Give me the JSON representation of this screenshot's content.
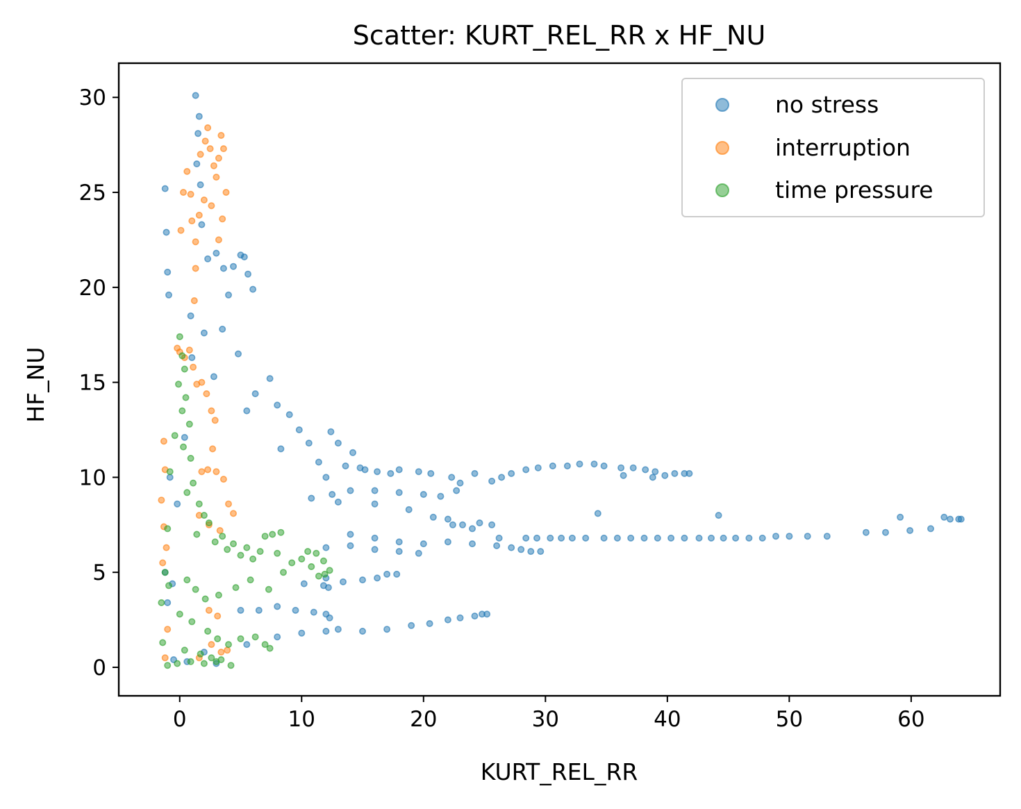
{
  "chart_data": {
    "type": "scatter",
    "title": "Scatter: KURT_REL_RR x HF_NU",
    "xlabel": "KURT_REL_RR",
    "ylabel": "HF_NU",
    "xlim": [
      -5,
      67.3
    ],
    "ylim": [
      -1.5,
      31.8
    ],
    "x_ticks": [
      0,
      10,
      20,
      30,
      40,
      50,
      60
    ],
    "y_ticks": [
      0,
      5,
      10,
      15,
      20,
      25,
      30
    ],
    "legend_position": "top-right",
    "grid": false,
    "series": [
      {
        "name": "no stress",
        "color": "#1f77b4",
        "points": [
          [
            -1.2,
            5.0
          ],
          [
            -1.0,
            3.4
          ],
          [
            -0.6,
            4.4
          ],
          [
            -0.2,
            8.6
          ],
          [
            0.4,
            12.1
          ],
          [
            -0.8,
            10.0
          ],
          [
            -1.0,
            20.8
          ],
          [
            -1.2,
            25.2
          ],
          [
            -1.1,
            22.9
          ],
          [
            -0.9,
            19.6
          ],
          [
            1.3,
            30.1
          ],
          [
            1.6,
            29.0
          ],
          [
            1.5,
            28.1
          ],
          [
            1.4,
            26.5
          ],
          [
            1.7,
            25.4
          ],
          [
            1.8,
            23.3
          ],
          [
            0.9,
            18.5
          ],
          [
            1.0,
            16.3
          ],
          [
            2.0,
            17.6
          ],
          [
            2.3,
            21.5
          ],
          [
            3.0,
            21.8
          ],
          [
            3.6,
            21.0
          ],
          [
            4.0,
            19.6
          ],
          [
            4.4,
            21.1
          ],
          [
            5.0,
            21.7
          ],
          [
            5.3,
            21.6
          ],
          [
            5.6,
            20.7
          ],
          [
            6.0,
            19.9
          ],
          [
            3.5,
            17.8
          ],
          [
            4.8,
            16.5
          ],
          [
            2.8,
            15.3
          ],
          [
            5.5,
            13.5
          ],
          [
            6.2,
            14.4
          ],
          [
            7.4,
            15.2
          ],
          [
            8.0,
            13.8
          ],
          [
            8.3,
            11.5
          ],
          [
            9.0,
            13.3
          ],
          [
            9.8,
            12.5
          ],
          [
            10.6,
            11.8
          ],
          [
            11.4,
            10.8
          ],
          [
            12.0,
            10.0
          ],
          [
            12.4,
            12.4
          ],
          [
            13.0,
            11.8
          ],
          [
            13.6,
            10.6
          ],
          [
            14.2,
            11.3
          ],
          [
            14.8,
            10.5
          ],
          [
            15.2,
            10.4
          ],
          [
            16.2,
            10.3
          ],
          [
            17.3,
            10.2
          ],
          [
            18.0,
            10.4
          ],
          [
            19.6,
            10.3
          ],
          [
            20.6,
            10.2
          ],
          [
            22.3,
            10.0
          ],
          [
            23.0,
            9.7
          ],
          [
            24.2,
            10.2
          ],
          [
            25.6,
            9.8
          ],
          [
            26.4,
            10.0
          ],
          [
            27.2,
            10.2
          ],
          [
            28.4,
            10.4
          ],
          [
            29.4,
            10.5
          ],
          [
            30.6,
            10.6
          ],
          [
            31.8,
            10.6
          ],
          [
            32.8,
            10.7
          ],
          [
            34.0,
            10.7
          ],
          [
            34.8,
            10.6
          ],
          [
            36.2,
            10.5
          ],
          [
            37.2,
            10.5
          ],
          [
            38.2,
            10.4
          ],
          [
            39.0,
            10.3
          ],
          [
            39.8,
            10.1
          ],
          [
            40.6,
            10.2
          ],
          [
            41.4,
            10.2
          ],
          [
            41.8,
            10.2
          ],
          [
            36.4,
            10.1
          ],
          [
            38.8,
            10.0
          ],
          [
            12.5,
            9.1
          ],
          [
            14.0,
            9.3
          ],
          [
            16.0,
            9.3
          ],
          [
            18.0,
            9.2
          ],
          [
            20.0,
            9.1
          ],
          [
            21.4,
            9.0
          ],
          [
            22.7,
            9.3
          ],
          [
            10.8,
            8.9
          ],
          [
            13.0,
            8.7
          ],
          [
            16.0,
            8.6
          ],
          [
            18.8,
            8.3
          ],
          [
            20.8,
            7.9
          ],
          [
            22.0,
            7.8
          ],
          [
            23.2,
            7.5
          ],
          [
            24.6,
            7.6
          ],
          [
            25.6,
            7.5
          ],
          [
            26.2,
            6.8
          ],
          [
            24.0,
            7.3
          ],
          [
            22.4,
            7.5
          ],
          [
            28.4,
            6.8
          ],
          [
            29.3,
            6.8
          ],
          [
            30.4,
            6.8
          ],
          [
            31.3,
            6.8
          ],
          [
            32.2,
            6.8
          ],
          [
            33.3,
            6.8
          ],
          [
            34.8,
            6.8
          ],
          [
            35.9,
            6.8
          ],
          [
            37.0,
            6.8
          ],
          [
            38.1,
            6.8
          ],
          [
            39.2,
            6.8
          ],
          [
            40.3,
            6.8
          ],
          [
            41.4,
            6.8
          ],
          [
            42.6,
            6.8
          ],
          [
            43.6,
            6.8
          ],
          [
            44.6,
            6.8
          ],
          [
            45.6,
            6.8
          ],
          [
            46.7,
            6.8
          ],
          [
            47.8,
            6.8
          ],
          [
            48.9,
            6.9
          ],
          [
            50.0,
            6.9
          ],
          [
            51.5,
            6.9
          ],
          [
            53.1,
            6.9
          ],
          [
            56.3,
            7.1
          ],
          [
            57.9,
            7.1
          ],
          [
            59.1,
            7.9
          ],
          [
            59.9,
            7.2
          ],
          [
            61.6,
            7.3
          ],
          [
            62.7,
            7.9
          ],
          [
            63.2,
            7.8
          ],
          [
            63.9,
            7.8
          ],
          [
            64.1,
            7.8
          ],
          [
            34.3,
            8.1
          ],
          [
            44.2,
            8.0
          ],
          [
            14.0,
            7.0
          ],
          [
            16.0,
            6.8
          ],
          [
            18.0,
            6.6
          ],
          [
            20.0,
            6.5
          ],
          [
            22.0,
            6.6
          ],
          [
            24.0,
            6.5
          ],
          [
            26.0,
            6.4
          ],
          [
            27.2,
            6.3
          ],
          [
            28.0,
            6.2
          ],
          [
            28.8,
            6.1
          ],
          [
            29.6,
            6.1
          ],
          [
            12.0,
            6.3
          ],
          [
            14.0,
            6.4
          ],
          [
            16.0,
            6.2
          ],
          [
            18.0,
            6.1
          ],
          [
            19.6,
            6.0
          ],
          [
            12.0,
            4.7
          ],
          [
            13.4,
            4.5
          ],
          [
            15.0,
            4.6
          ],
          [
            16.2,
            4.7
          ],
          [
            17.0,
            4.9
          ],
          [
            17.8,
            4.9
          ],
          [
            10.2,
            4.4
          ],
          [
            11.8,
            4.3
          ],
          [
            12.2,
            4.2
          ],
          [
            5.0,
            3.0
          ],
          [
            6.5,
            3.0
          ],
          [
            8.0,
            3.2
          ],
          [
            9.5,
            3.0
          ],
          [
            11.0,
            2.9
          ],
          [
            12.0,
            2.8
          ],
          [
            12.3,
            2.6
          ],
          [
            13.0,
            2.0
          ],
          [
            15.0,
            1.9
          ],
          [
            17.0,
            2.0
          ],
          [
            19.0,
            2.2
          ],
          [
            20.5,
            2.3
          ],
          [
            22.0,
            2.5
          ],
          [
            23.0,
            2.6
          ],
          [
            24.2,
            2.7
          ],
          [
            24.8,
            2.8
          ],
          [
            25.2,
            2.8
          ],
          [
            5.5,
            1.2
          ],
          [
            8.0,
            1.6
          ],
          [
            10.0,
            1.8
          ],
          [
            12.0,
            1.9
          ],
          [
            3.0,
            0.2
          ],
          [
            2.0,
            0.8
          ],
          [
            -0.5,
            0.4
          ],
          [
            0.6,
            0.3
          ]
        ]
      },
      {
        "name": "interruption",
        "color": "#ff7f0e",
        "points": [
          [
            0.1,
            23.0
          ],
          [
            0.3,
            25.0
          ],
          [
            0.6,
            26.1
          ],
          [
            0.9,
            24.9
          ],
          [
            1.0,
            23.5
          ],
          [
            1.3,
            22.4
          ],
          [
            1.7,
            27.0
          ],
          [
            2.1,
            27.7
          ],
          [
            2.3,
            28.4
          ],
          [
            2.5,
            27.3
          ],
          [
            2.8,
            26.4
          ],
          [
            3.0,
            25.8
          ],
          [
            3.2,
            26.8
          ],
          [
            3.4,
            28.0
          ],
          [
            3.6,
            27.3
          ],
          [
            3.8,
            25.0
          ],
          [
            3.5,
            23.6
          ],
          [
            3.2,
            22.5
          ],
          [
            2.6,
            24.3
          ],
          [
            2.0,
            24.6
          ],
          [
            1.6,
            23.8
          ],
          [
            1.3,
            21.0
          ],
          [
            1.2,
            19.3
          ],
          [
            -0.2,
            16.8
          ],
          [
            0.0,
            16.6
          ],
          [
            0.4,
            16.3
          ],
          [
            0.8,
            16.7
          ],
          [
            1.1,
            15.8
          ],
          [
            1.4,
            14.9
          ],
          [
            1.8,
            15.0
          ],
          [
            2.2,
            14.4
          ],
          [
            2.6,
            13.5
          ],
          [
            2.9,
            13.0
          ],
          [
            2.7,
            11.5
          ],
          [
            -1.3,
            11.9
          ],
          [
            -1.2,
            10.4
          ],
          [
            -1.5,
            8.8
          ],
          [
            -1.3,
            7.4
          ],
          [
            -1.1,
            6.3
          ],
          [
            -1.4,
            5.5
          ],
          [
            -1.0,
            2.0
          ],
          [
            -1.2,
            0.5
          ],
          [
            1.8,
            10.3
          ],
          [
            2.3,
            10.4
          ],
          [
            3.0,
            10.3
          ],
          [
            3.6,
            9.9
          ],
          [
            4.0,
            8.6
          ],
          [
            4.4,
            8.1
          ],
          [
            3.3,
            7.2
          ],
          [
            2.4,
            7.5
          ],
          [
            1.6,
            8.0
          ],
          [
            2.4,
            3.0
          ],
          [
            3.1,
            2.7
          ],
          [
            2.6,
            1.2
          ],
          [
            3.4,
            0.8
          ],
          [
            3.9,
            0.9
          ],
          [
            1.6,
            0.5
          ]
        ]
      },
      {
        "name": "time pressure",
        "color": "#2ca02c",
        "points": [
          [
            0.0,
            17.4
          ],
          [
            0.2,
            16.4
          ],
          [
            0.4,
            15.7
          ],
          [
            -0.1,
            14.9
          ],
          [
            0.5,
            14.2
          ],
          [
            0.2,
            13.5
          ],
          [
            0.8,
            12.8
          ],
          [
            -0.4,
            12.2
          ],
          [
            0.3,
            11.6
          ],
          [
            0.9,
            11.0
          ],
          [
            -0.8,
            10.3
          ],
          [
            1.1,
            9.7
          ],
          [
            0.6,
            9.2
          ],
          [
            1.6,
            8.6
          ],
          [
            2.0,
            8.0
          ],
          [
            2.4,
            7.6
          ],
          [
            -1.0,
            7.3
          ],
          [
            1.4,
            7.0
          ],
          [
            2.9,
            6.6
          ],
          [
            3.5,
            6.9
          ],
          [
            3.9,
            6.2
          ],
          [
            4.4,
            6.5
          ],
          [
            5.0,
            5.9
          ],
          [
            5.5,
            6.3
          ],
          [
            6.0,
            5.7
          ],
          [
            6.6,
            6.1
          ],
          [
            7.0,
            6.9
          ],
          [
            7.6,
            7.0
          ],
          [
            8.3,
            7.1
          ],
          [
            8.0,
            6.0
          ],
          [
            8.5,
            5.0
          ],
          [
            9.2,
            5.5
          ],
          [
            10.0,
            5.7
          ],
          [
            10.5,
            6.1
          ],
          [
            11.2,
            6.0
          ],
          [
            11.8,
            5.6
          ],
          [
            12.3,
            5.1
          ],
          [
            11.9,
            4.9
          ],
          [
            11.4,
            4.8
          ],
          [
            10.8,
            5.3
          ],
          [
            -1.2,
            5.0
          ],
          [
            -0.9,
            4.3
          ],
          [
            0.6,
            4.6
          ],
          [
            1.3,
            4.1
          ],
          [
            2.1,
            3.6
          ],
          [
            3.2,
            3.8
          ],
          [
            4.6,
            4.2
          ],
          [
            5.8,
            4.6
          ],
          [
            7.3,
            4.1
          ],
          [
            -1.5,
            3.4
          ],
          [
            0.0,
            2.8
          ],
          [
            1.0,
            2.4
          ],
          [
            2.3,
            1.9
          ],
          [
            3.1,
            1.5
          ],
          [
            -1.4,
            1.3
          ],
          [
            0.4,
            0.9
          ],
          [
            1.7,
            0.7
          ],
          [
            2.6,
            0.5
          ],
          [
            4.0,
            1.2
          ],
          [
            5.0,
            1.5
          ],
          [
            6.2,
            1.6
          ],
          [
            7.0,
            1.2
          ],
          [
            7.4,
            1.0
          ],
          [
            3.4,
            0.4
          ],
          [
            4.2,
            0.1
          ],
          [
            -0.2,
            0.2
          ],
          [
            0.9,
            0.3
          ],
          [
            2.0,
            0.2
          ],
          [
            3.0,
            0.3
          ],
          [
            -1.0,
            0.1
          ]
        ]
      }
    ]
  }
}
